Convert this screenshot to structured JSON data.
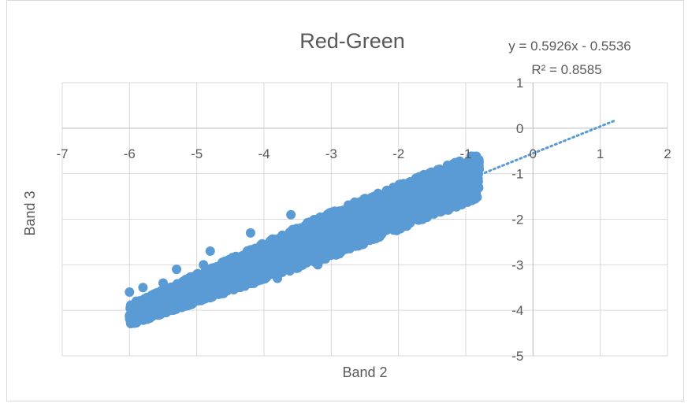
{
  "chart_data": {
    "type": "scatter",
    "title": "Red-Green",
    "xlabel": "Band 2",
    "ylabel": "Band 3",
    "xlim": [
      -7,
      2
    ],
    "ylim": [
      -5,
      1
    ],
    "xticks": [
      -7,
      -6,
      -5,
      -4,
      -3,
      -2,
      -1,
      0,
      1,
      2
    ],
    "yticks": [
      -5,
      -4,
      -3,
      -2,
      -1,
      0,
      1
    ],
    "grid": true,
    "marker_color": "#5b9bd5",
    "trendline": {
      "type": "linear",
      "slope": 0.5926,
      "intercept": -0.5536,
      "x_range": [
        -6,
        1.2
      ],
      "equation_label": "y = 0.5926x  - 0.5536",
      "r2_label": "R² = 0.8585",
      "style": "dotted"
    },
    "series": [
      {
        "points_sample": [
          [
            -6.0,
            -3.6
          ],
          [
            -5.9,
            -3.8
          ],
          [
            -5.8,
            -3.5
          ],
          [
            -5.7,
            -3.7
          ],
          [
            -5.6,
            -3.9
          ],
          [
            -5.5,
            -3.4
          ],
          [
            -5.4,
            -3.7
          ],
          [
            -5.3,
            -3.1
          ],
          [
            -5.2,
            -3.5
          ],
          [
            -5.1,
            -3.8
          ],
          [
            -5.0,
            -3.3
          ],
          [
            -4.9,
            -3.0
          ],
          [
            -4.8,
            -2.7
          ],
          [
            -4.6,
            -3.0
          ],
          [
            -4.4,
            -2.9
          ],
          [
            -4.2,
            -2.3
          ],
          [
            -4.1,
            -3.2
          ],
          [
            -4.0,
            -3.0
          ],
          [
            -3.9,
            -2.5
          ],
          [
            -3.8,
            -3.3
          ],
          [
            -3.7,
            -2.6
          ],
          [
            -3.6,
            -1.9
          ],
          [
            -3.5,
            -2.8
          ],
          [
            -3.4,
            -2.4
          ],
          [
            -3.3,
            -2.1
          ],
          [
            -3.2,
            -3.0
          ],
          [
            -3.1,
            -2.3
          ],
          [
            -3.0,
            -1.9
          ],
          [
            -2.9,
            -2.7
          ],
          [
            -2.8,
            -2.2
          ],
          [
            -2.7,
            -2.0
          ],
          [
            -2.6,
            -2.5
          ],
          [
            -2.5,
            -1.8
          ],
          [
            -2.4,
            -2.3
          ],
          [
            -2.3,
            -1.6
          ],
          [
            -2.2,
            -2.0
          ],
          [
            -2.1,
            -1.7
          ],
          [
            -2.0,
            -2.2
          ],
          [
            -1.9,
            -1.5
          ],
          [
            -1.8,
            -1.9
          ],
          [
            -1.7,
            -1.4
          ],
          [
            -1.6,
            -1.7
          ],
          [
            -1.5,
            -1.3
          ],
          [
            -1.4,
            -1.6
          ],
          [
            -1.3,
            -1.2
          ],
          [
            -1.2,
            -1.4
          ],
          [
            -1.1,
            -1.1
          ],
          [
            -1.0,
            -1.2
          ],
          [
            -0.9,
            -1.0
          ],
          [
            -0.8,
            -0.9
          ]
        ]
      }
    ]
  }
}
